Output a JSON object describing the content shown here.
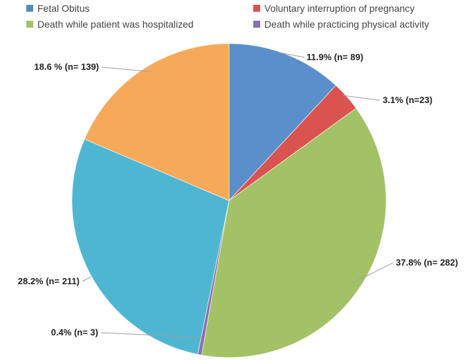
{
  "chart_data": {
    "type": "pie",
    "title": "",
    "legend_position": "top",
    "series": [
      {
        "name": "Fetal Obitus",
        "color": "#5a8ac6"
      },
      {
        "name": "Voluntary interruption of pregnancy",
        "color": "#d9534f"
      },
      {
        "name": "Death while patient was hospitalized",
        "color": "#a3c266"
      },
      {
        "name": "Death while practicing physical activity",
        "color": "#8a6fae"
      }
    ],
    "slices": [
      {
        "percent": 11.9,
        "n": 89,
        "color": "#5b8fcb",
        "label": "11.9% (n= 89)"
      },
      {
        "percent": 3.1,
        "n": 23,
        "color": "#d9534f",
        "label": "3.1% (n=23)"
      },
      {
        "percent": 37.8,
        "n": 282,
        "color": "#a3c266",
        "label": "37.8% (n= 282)"
      },
      {
        "percent": 0.4,
        "n": 3,
        "color": "#8a6fae",
        "label": "0.4% (n= 3)"
      },
      {
        "percent": 28.2,
        "n": 211,
        "color": "#4fb6d2",
        "label": "28.2% (n= 211)"
      },
      {
        "percent": 18.6,
        "n": 139,
        "color": "#f7a95a",
        "label": "18.6 % (n= 139)"
      }
    ]
  }
}
